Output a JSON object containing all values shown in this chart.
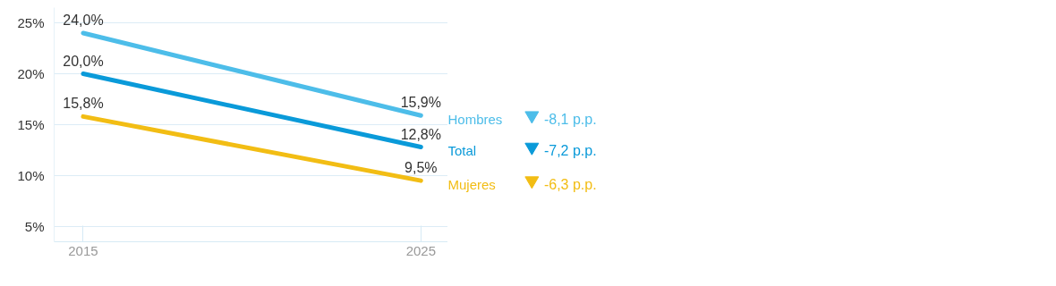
{
  "chart_data": {
    "type": "line",
    "x": [
      2015,
      2025
    ],
    "xlim": [
      2014.14,
      2025.8
    ],
    "xticks": [
      2015,
      2025
    ],
    "ylim": [
      3.5,
      26.5
    ],
    "legend": "right",
    "yticks": [
      {
        "value": 5,
        "label": "5%"
      },
      {
        "value": 10,
        "label": "10%"
      },
      {
        "value": 15,
        "label": "15%"
      },
      {
        "value": 20,
        "label": "20%"
      },
      {
        "value": 25,
        "label": "25%"
      }
    ],
    "grid": "y",
    "marker": "none",
    "line_style": "solid",
    "series": [
      {
        "name": "Hombres",
        "color": "#4dbde9",
        "values": [
          24.0,
          15.9
        ],
        "value_labels": [
          "24,0%",
          "15,9%"
        ]
      },
      {
        "name": "Total",
        "color": "#0a9ad9",
        "values": [
          20.0,
          12.8
        ],
        "value_labels": [
          "20,0%",
          "12,8%"
        ]
      },
      {
        "name": "Mujeres",
        "color": "#f2bd14",
        "values": [
          15.8,
          9.5
        ],
        "value_labels": [
          "15,8%",
          "9,5%"
        ]
      }
    ],
    "annotations": [
      "-8,1 p.p.",
      "-7,2 p.p.",
      "-6,3 p.p."
    ]
  }
}
